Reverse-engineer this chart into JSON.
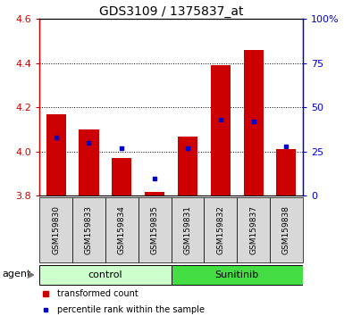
{
  "title": "GDS3109 / 1375837_at",
  "samples": [
    "GSM159830",
    "GSM159833",
    "GSM159834",
    "GSM159835",
    "GSM159831",
    "GSM159832",
    "GSM159837",
    "GSM159838"
  ],
  "transformed_counts": [
    4.17,
    4.1,
    3.97,
    3.82,
    4.07,
    4.39,
    4.46,
    4.01
  ],
  "percentile_ranks": [
    33,
    30,
    27,
    10,
    27,
    43,
    42,
    28
  ],
  "bar_bottom": 3.8,
  "ylim_left": [
    3.8,
    4.6
  ],
  "ylim_right": [
    0,
    100
  ],
  "yticks_left": [
    3.8,
    4.0,
    4.2,
    4.4,
    4.6
  ],
  "yticks_right": [
    0,
    25,
    50,
    75,
    100
  ],
  "bar_color": "#cc0000",
  "dot_color": "#0000cc",
  "control_label": "control",
  "sunitinib_label": "Sunitinib",
  "agent_label": "agent",
  "legend_bar_label": "transformed count",
  "legend_dot_label": "percentile rank within the sample",
  "bg_color": "#d8d8d8",
  "control_bg": "#ccffcc",
  "sunitinib_bg": "#44dd44",
  "left_axis_color": "#cc0000",
  "right_axis_color": "#0000cc",
  "bar_width": 0.6,
  "n_control": 4,
  "n_sunitinib": 4
}
